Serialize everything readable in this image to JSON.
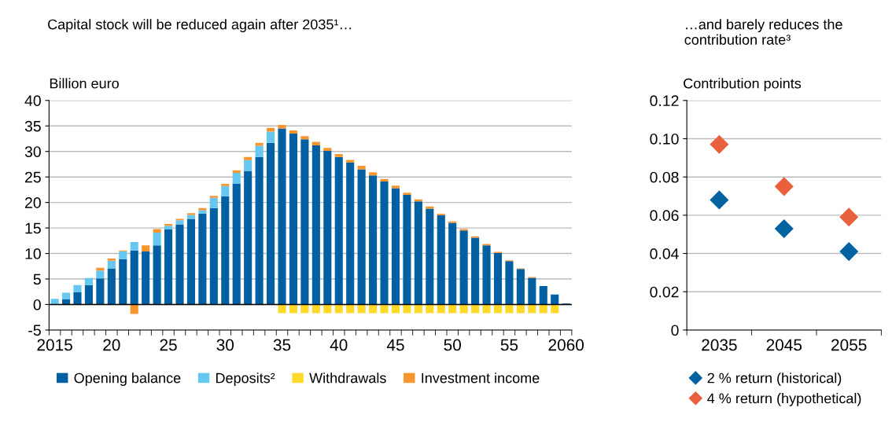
{
  "chart_data": [
    {
      "type": "bar",
      "stacked": true,
      "title": "Capital stock will be reduced again after 2035¹…",
      "ylabel": "Billion euro",
      "categories": [
        "2015",
        null,
        null,
        null,
        null,
        "20",
        null,
        null,
        null,
        null,
        "25",
        null,
        null,
        null,
        null,
        "30",
        null,
        null,
        null,
        null,
        "35",
        null,
        null,
        null,
        null,
        "40",
        null,
        null,
        null,
        null,
        "45",
        null,
        null,
        null,
        null,
        "50",
        null,
        null,
        null,
        null,
        "55",
        null,
        null,
        null,
        null,
        "2060"
      ],
      "series": [
        {
          "name": "Opening balance",
          "color": "#0060a2",
          "values": [
            0,
            1.0,
            2.4,
            3.8,
            5.1,
            7.1,
            8.9,
            10.6,
            10.4,
            11.6,
            14.7,
            15.7,
            16.8,
            17.8,
            18.9,
            21.2,
            23.7,
            26.2,
            28.9,
            31.7,
            34.5,
            33.5,
            32.4,
            31.2,
            30.1,
            28.9,
            27.8,
            26.5,
            25.3,
            24.1,
            22.8,
            21.5,
            20.2,
            18.8,
            17.5,
            16.0,
            14.5,
            13.1,
            11.6,
            10.1,
            8.5,
            6.95,
            5.25,
            3.6,
            1.95,
            0.2
          ]
        },
        {
          "name": "Deposits²",
          "color": "#66c8f0",
          "values": [
            1.1,
            1.3,
            1.4,
            1.4,
            1.55,
            1.5,
            1.55,
            1.65,
            0,
            2.5,
            0.75,
            0.8,
            0.75,
            0.7,
            2.0,
            2.0,
            2.1,
            2.1,
            2.2,
            2.2,
            0,
            0,
            0,
            0,
            0,
            0,
            0,
            0,
            0,
            0,
            0,
            0,
            0,
            0,
            0,
            0,
            0,
            0,
            0,
            0,
            0,
            0,
            0,
            0,
            0,
            0
          ]
        },
        {
          "name": "Withdrawals",
          "color": "#ffd92a",
          "values": [
            0,
            0,
            0,
            0,
            0,
            0,
            0,
            0,
            0,
            0,
            0,
            0,
            0,
            0,
            0,
            0,
            0,
            0,
            0,
            0,
            -1.7,
            -1.7,
            -1.7,
            -1.7,
            -1.7,
            -1.7,
            -1.7,
            -1.7,
            -1.7,
            -1.7,
            -1.7,
            -1.7,
            -1.7,
            -1.7,
            -1.7,
            -1.7,
            -1.7,
            -1.7,
            -1.7,
            -1.7,
            -1.7,
            -1.7,
            -1.7,
            -1.7,
            -1.7,
            0
          ]
        },
        {
          "name": "Investment income",
          "color": "#f7962e",
          "values": [
            0,
            0,
            0,
            0,
            0.55,
            0.4,
            0.15,
            -1.85,
            1.2,
            0.7,
            0.35,
            0.3,
            0.35,
            0.4,
            0.4,
            0.45,
            0.5,
            0.6,
            0.6,
            0.7,
            0.7,
            0.6,
            0.6,
            0.7,
            0.6,
            0.6,
            0.55,
            0.7,
            0.6,
            0.5,
            0.5,
            0.4,
            0.4,
            0.4,
            0.3,
            0.3,
            0.3,
            0.25,
            0.25,
            0.2,
            0.15,
            0.15,
            0.15,
            0,
            0,
            0
          ]
        }
      ],
      "ylim": [
        -5,
        40
      ],
      "yticks": [
        -5,
        0,
        5,
        10,
        15,
        20,
        25,
        30,
        35,
        40
      ],
      "grid": "y",
      "legend": "bottom"
    },
    {
      "type": "scatter",
      "title": "…and barely reduces the contribution rate³",
      "ylabel": "Contribution points",
      "marker": "diamond",
      "categories": [
        "2035",
        "2045",
        "2055"
      ],
      "series": [
        {
          "name": "2 % return (historical)",
          "color": "#0062a0",
          "values": [
            0.068,
            0.053,
            0.041
          ]
        },
        {
          "name": "4 % return (hypothetical)",
          "color": "#e8603c",
          "values": [
            0.097,
            0.075,
            0.059
          ]
        }
      ],
      "ylim": [
        0,
        0.12
      ],
      "yticks": [
        0,
        {
          "value": 0.02,
          "label": "0.02"
        },
        {
          "value": 0.04,
          "label": "0.04"
        },
        {
          "value": 0.06,
          "label": "0.06"
        },
        {
          "value": 0.08,
          "label": "0.08"
        },
        {
          "value": 0.1,
          "label": "0.10"
        },
        {
          "value": 0.12,
          "label": "0.12"
        }
      ],
      "grid": "y",
      "legend": "bottom"
    }
  ]
}
